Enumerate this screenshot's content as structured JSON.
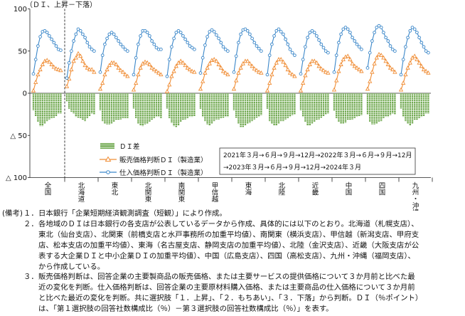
{
  "chart_data": {
    "type": "bar+line",
    "ylabel": "（ＤＩ、上昇－下落）",
    "ylim": [
      -100,
      100
    ],
    "y_ticks": [
      100,
      50,
      0,
      -50,
      -100
    ],
    "y_tick_labels": [
      "100",
      "50",
      "0",
      "△ 50",
      "△ 100"
    ],
    "grid": false,
    "legend_placement": "bottom-left",
    "categories": [
      "全国",
      "北海道",
      "東北",
      "北関東",
      "南関東",
      "甲信越",
      "東海",
      "北陸",
      "近畿",
      "中国",
      "四国",
      "九州・沖縄"
    ],
    "period_note": [
      "2021年３月→６月→９月→12月→2022年３月→６月→９月→12月",
      "→2023年３月→６月→９月→12月→2024年３月"
    ],
    "series": [
      {
        "name": "ＤＩ差",
        "type": "bar",
        "color": "#5e9e3a",
        "values": [
          [
            -20,
            -27,
            -34,
            -39,
            -39,
            -36,
            -33,
            -31,
            -30,
            -29,
            -27,
            -24,
            -24
          ],
          [
            -10,
            -19,
            -22,
            -24,
            -28,
            -29,
            -30,
            -32,
            -33,
            -30,
            -27,
            -24,
            -25
          ],
          [
            -20,
            -33,
            -36,
            -37,
            -37,
            -36,
            -34,
            -32,
            -32,
            -31,
            -30,
            -30,
            -30
          ],
          [
            -18,
            -30,
            -36,
            -38,
            -39,
            -37,
            -36,
            -34,
            -32,
            -30,
            -28,
            -28,
            -30
          ],
          [
            -18,
            -30,
            -35,
            -39,
            -40,
            -38,
            -34,
            -32,
            -31,
            -30,
            -28,
            -28,
            -27
          ],
          [
            -19,
            -28,
            -33,
            -37,
            -38,
            -36,
            -33,
            -31,
            -31,
            -30,
            -29,
            -28,
            -28
          ],
          [
            -20,
            -29,
            -36,
            -40,
            -40,
            -38,
            -36,
            -35,
            -33,
            -31,
            -29,
            -28,
            -26
          ],
          [
            -19,
            -33,
            -36,
            -38,
            -38,
            -36,
            -33,
            -33,
            -31,
            -30,
            -28,
            -26,
            -25
          ],
          [
            -20,
            -28,
            -34,
            -38,
            -38,
            -36,
            -34,
            -32,
            -31,
            -29,
            -27,
            -25,
            -24
          ],
          [
            -21,
            -30,
            -34,
            -36,
            -36,
            -35,
            -32,
            -32,
            -31,
            -30,
            -28,
            -27,
            -26
          ],
          [
            -25,
            -34,
            -37,
            -37,
            -36,
            -34,
            -33,
            -30,
            -28,
            -28,
            -26,
            -24,
            -25
          ],
          [
            -18,
            -28,
            -33,
            -36,
            -38,
            -36,
            -32,
            -32,
            -30,
            -28,
            -27,
            -24,
            -24
          ]
        ]
      },
      {
        "name": "販売価格判断ＤＩ（製造業）",
        "type": "line",
        "marker": "triangle",
        "color": "#f08d35",
        "values": [
          [
            3,
            13,
            22,
            28,
            34,
            38,
            39,
            37,
            34,
            31,
            29,
            28,
            27
          ],
          [
            8,
            17,
            28,
            38,
            42,
            47,
            44,
            38,
            33,
            30,
            28,
            28,
            25
          ],
          [
            5,
            12,
            22,
            28,
            33,
            36,
            36,
            34,
            30,
            27,
            25,
            22,
            20
          ],
          [
            4,
            12,
            22,
            30,
            35,
            37,
            36,
            34,
            30,
            28,
            26,
            24,
            22
          ],
          [
            2,
            10,
            20,
            26,
            32,
            36,
            38,
            36,
            33,
            30,
            28,
            26,
            25
          ],
          [
            5,
            14,
            24,
            30,
            35,
            39,
            40,
            38,
            34,
            30,
            26,
            24,
            22
          ],
          [
            5,
            15,
            24,
            30,
            35,
            38,
            38,
            35,
            32,
            29,
            27,
            25,
            24
          ],
          [
            3,
            12,
            22,
            30,
            36,
            40,
            40,
            37,
            33,
            28,
            24,
            22,
            20
          ],
          [
            3,
            12,
            21,
            28,
            34,
            38,
            38,
            36,
            32,
            29,
            27,
            25,
            24
          ],
          [
            4,
            15,
            26,
            34,
            40,
            43,
            44,
            40,
            35,
            32,
            30,
            28,
            26
          ],
          [
            5,
            14,
            25,
            35,
            42,
            46,
            45,
            42,
            38,
            34,
            30,
            28,
            25
          ],
          [
            4,
            12,
            22,
            30,
            36,
            42,
            44,
            40,
            36,
            32,
            28,
            26,
            24
          ]
        ]
      },
      {
        "name": "仕入価格判断ＤＩ（製造業）",
        "type": "line",
        "marker": "circle",
        "color": "#3b87c9",
        "values": [
          [
            23,
            40,
            56,
            67,
            73,
            74,
            72,
            68,
            64,
            60,
            56,
            52,
            51
          ],
          [
            18,
            36,
            50,
            62,
            70,
            76,
            74,
            70,
            66,
            60,
            55,
            52,
            50
          ],
          [
            25,
            45,
            58,
            65,
            70,
            72,
            70,
            66,
            62,
            58,
            55,
            52,
            50
          ],
          [
            22,
            42,
            58,
            68,
            74,
            74,
            72,
            68,
            62,
            58,
            54,
            52,
            52
          ],
          [
            20,
            40,
            55,
            65,
            72,
            74,
            72,
            68,
            64,
            60,
            56,
            54,
            52
          ],
          [
            24,
            42,
            57,
            67,
            73,
            75,
            73,
            69,
            65,
            60,
            55,
            52,
            50
          ],
          [
            25,
            44,
            60,
            70,
            75,
            76,
            74,
            70,
            65,
            60,
            56,
            53,
            50
          ],
          [
            22,
            45,
            58,
            68,
            74,
            76,
            73,
            70,
            64,
            58,
            52,
            48,
            45
          ],
          [
            23,
            40,
            55,
            66,
            72,
            74,
            72,
            68,
            63,
            58,
            54,
            50,
            48
          ],
          [
            25,
            45,
            60,
            70,
            76,
            78,
            76,
            72,
            66,
            62,
            58,
            55,
            52
          ],
          [
            30,
            48,
            62,
            72,
            78,
            80,
            78,
            72,
            66,
            62,
            56,
            52,
            50
          ],
          [
            22,
            40,
            55,
            66,
            74,
            78,
            76,
            72,
            66,
            60,
            55,
            50,
            48
          ]
        ]
      }
    ]
  },
  "notes": {
    "prefix": "(備考)",
    "lines": [
      {
        "num": "１．",
        "text": "日本銀行「企業短期経済観測調査（短観）」により作成。"
      },
      {
        "num": "２．",
        "text": "各地域のＤＩは日本銀行の各支店が公表しているデータから作成、具体的には以下のとおり。北海道（札幌支店）、"
      },
      {
        "num": "",
        "text": "東北（仙台支店）、北関東（前橋支店と水戸事務所の加重平均値）、南関東（横浜支店）、甲信越（新潟支店、甲府支"
      },
      {
        "num": "",
        "text": "店、松本支店の加重平均値）、東海（名古屋支店、静岡支店の加重平均値）、北陸（金沢支店）、近畿（大阪支店が公"
      },
      {
        "num": "",
        "text": "表する大企業ＤＩと中小企業ＤＩの加重平均値）、中国（広島支店）、四国（高松支店）、九州・沖縄（福岡支店）、"
      },
      {
        "num": "",
        "text": "から作成している。"
      },
      {
        "num": "３．",
        "text": "販売価格判断は、回答企業の主要製商品の販売価格、または主要サービスの提供価格について３か月前と比べた最"
      },
      {
        "num": "",
        "text": "近の変化を判断。仕入価格判断は、回答企業の主要原材料購入価格、または主要商品の仕入価格について３か月前"
      },
      {
        "num": "",
        "text": "と比べた最近の変化を判断。共に選択肢「１．上昇」、「２．もちあい」、「３．下落」から判断。ＤＩ（％ポイント）"
      },
      {
        "num": "",
        "text": "は、「第１選択肢の回答社数構成比（％）－第３選択肢の回答社数構成比（％）」を表す。"
      }
    ]
  }
}
